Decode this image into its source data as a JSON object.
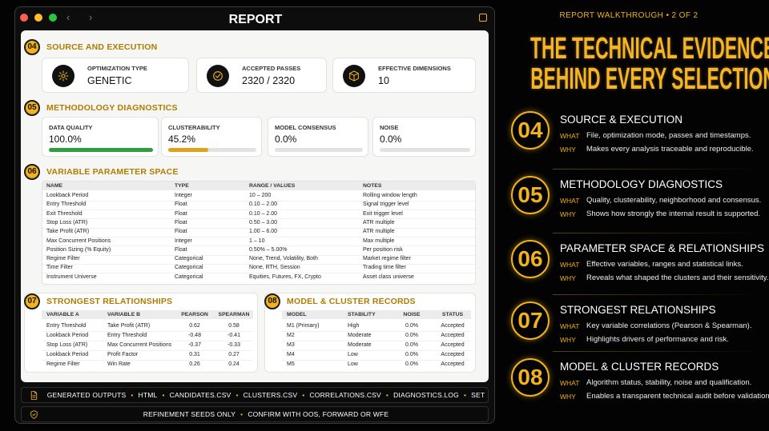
{
  "window": {
    "title": "REPORT"
  },
  "source": {
    "number": "04",
    "title": "SOURCE AND EXECUTION",
    "cards": [
      {
        "label": "OPTIMIZATION TYPE",
        "value": "GENETIC"
      },
      {
        "label": "ACCEPTED PASSES",
        "value": "2320 / 2320"
      },
      {
        "label": "EFFECTIVE DIMENSIONS",
        "value": "10"
      }
    ]
  },
  "diagnostics": {
    "number": "05",
    "title": "METHODOLOGY DIAGNOSTICS",
    "metrics": [
      {
        "label": "DATA QUALITY",
        "value": 100.0,
        "value_label": "100.0%"
      },
      {
        "label": "CLUSTERABILITY",
        "value": 45.2,
        "value_label": "45.2%"
      },
      {
        "label": "MODEL CONSENSUS",
        "value": 0.0,
        "value_label": "0.0%"
      },
      {
        "label": "NOISE",
        "value": 0.0,
        "value_label": "0.0%"
      }
    ]
  },
  "parameters": {
    "number": "06",
    "title": "VARIABLE PARAMETER SPACE",
    "columns": [
      "NAME",
      "TYPE",
      "RANGE / VALUES",
      "NOTES"
    ],
    "rows": [
      [
        "Lookback Period",
        "Integer",
        "10 – 200",
        "Rolling window length"
      ],
      [
        "Entry Threshold",
        "Float",
        "0.10 – 2.00",
        "Signal trigger level"
      ],
      [
        "Exit Threshold",
        "Float",
        "0.10 – 2.00",
        "Exit trigger level"
      ],
      [
        "Stop Loss (ATR)",
        "Float",
        "0.50 – 3.00",
        "ATR multiple"
      ],
      [
        "Take Profit (ATR)",
        "Float",
        "1.00 – 6.00",
        "ATR multiple"
      ],
      [
        "Max Concurrent Positions",
        "Integer",
        "1 – 10",
        "Max multiple"
      ],
      [
        "Position Sizing (% Equity)",
        "Float",
        "0.50% – 5.00%",
        "Per position risk"
      ],
      [
        "Regime Filter",
        "Categorical",
        "None, Trend, Volatility, Both",
        "Market regime filter"
      ],
      [
        "Time Filter",
        "Categorical",
        "None, RTH, Session",
        "Trading time filter"
      ],
      [
        "Instrument Universe",
        "Categorical",
        "Equities, Futures, FX, Crypto",
        "Asset class universe"
      ]
    ]
  },
  "relationships": {
    "number": "07",
    "title": "STRONGEST RELATIONSHIPS",
    "columns": [
      "VARIABLE A",
      "VARIABLE B",
      "PEARSON",
      "SPEARMAN"
    ],
    "rows": [
      [
        "Entry Threshold",
        "Take Profit (ATR)",
        "0.62",
        "0.58"
      ],
      [
        "Lookback Period",
        "Entry Threshold",
        "-0.48",
        "-0.41"
      ],
      [
        "Stop Loss (ATR)",
        "Max Concurrent Positions",
        "-0.37",
        "-0.33"
      ],
      [
        "Lookback Period",
        "Profit Factor",
        "0.31",
        "0.27"
      ],
      [
        "Regime Filter",
        "Win Rate",
        "0.26",
        "0.24"
      ]
    ]
  },
  "models": {
    "number": "08",
    "title": "MODEL & CLUSTER RECORDS",
    "columns": [
      "MODEL",
      "STABILITY",
      "NOISE",
      "STATUS"
    ],
    "rows": [
      [
        "M1 (Primary)",
        "High",
        "0.0%",
        "Accepted"
      ],
      [
        "M2",
        "Moderate",
        "0.0%",
        "Accepted"
      ],
      [
        "M3",
        "Moderate",
        "0.0%",
        "Accepted"
      ],
      [
        "M4",
        "Low",
        "0.0%",
        "Accepted"
      ],
      [
        "M5",
        "Low",
        "0.0%",
        "Accepted"
      ]
    ]
  },
  "outputs": {
    "label": "GENERATED OUTPUTS",
    "items": [
      "HTML",
      "CANDIDATES.CSV",
      "CLUSTERS.CSV",
      "CORRELATIONS.CSV",
      "DIAGNOSTICS.LOG",
      "SET"
    ]
  },
  "notice": {
    "items": [
      "REFINEMENT SEEDS ONLY",
      "CONFIRM WITH OOS, FORWARD OR WFE"
    ]
  },
  "walkthrough": {
    "kicker": "REPORT WALKTHROUGH • 2 OF 2",
    "title_lines": [
      "THE TECHNICAL EVIDENCE",
      "BEHIND EVERY SELECTION"
    ],
    "what_label": "WHAT",
    "why_label": "WHY",
    "items": [
      {
        "number": "04",
        "title": "SOURCE & EXECUTION",
        "what": "File, optimization mode, passes and timestamps.",
        "why": "Makes every analysis traceable and reproducible."
      },
      {
        "number": "05",
        "title": "METHODOLOGY DIAGNOSTICS",
        "what": "Quality, clusterability, neighborhood and consensus.",
        "why": "Shows how strongly the internal result is supported."
      },
      {
        "number": "06",
        "title": "PARAMETER SPACE & RELATIONSHIPS",
        "what": "Effective variables, ranges and statistical links.",
        "why": "Reveals what shaped the clusters and their sensitivity."
      },
      {
        "number": "07",
        "title": "STRONGEST RELATIONSHIPS",
        "what": "Key variable correlations (Pearson & Spearman).",
        "why": "Highlights drivers of performance and risk."
      },
      {
        "number": "08",
        "title": "MODEL & CLUSTER RECORDS",
        "what": "Algorithm status, stability, noise and qualification.",
        "why": "Enables a transparent technical audit before validation."
      }
    ]
  }
}
